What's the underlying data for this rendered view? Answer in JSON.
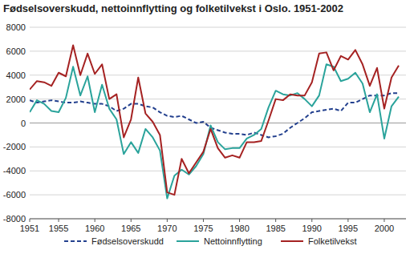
{
  "chart_data": {
    "type": "line",
    "title": "Fødselsoverskudd, nettoinnflytting og folketilvekst i Oslo. 1951-2002",
    "x": [
      1951,
      1952,
      1953,
      1954,
      1955,
      1956,
      1957,
      1958,
      1959,
      1960,
      1961,
      1962,
      1963,
      1964,
      1965,
      1966,
      1967,
      1968,
      1969,
      1970,
      1971,
      1972,
      1973,
      1974,
      1975,
      1976,
      1977,
      1978,
      1979,
      1980,
      1981,
      1982,
      1983,
      1984,
      1985,
      1986,
      1987,
      1988,
      1989,
      1990,
      1991,
      1992,
      1993,
      1994,
      1995,
      1996,
      1997,
      1998,
      1999,
      2000,
      2001,
      2002
    ],
    "series": [
      {
        "name": "Fødselsoverskudd",
        "color": "#23408e",
        "line_style": "dashed",
        "values": [
          1900,
          1700,
          1800,
          1900,
          1800,
          1700,
          1700,
          1800,
          1700,
          1600,
          1600,
          1400,
          1000,
          1200,
          1600,
          1600,
          1400,
          1300,
          900,
          600,
          500,
          600,
          300,
          0,
          100,
          -400,
          -600,
          -800,
          -900,
          -900,
          -1000,
          -800,
          -1000,
          -1200,
          -1100,
          -900,
          -400,
          0,
          400,
          900,
          1000,
          1100,
          1200,
          1000,
          1700,
          1700,
          2000,
          2300,
          2300,
          2300,
          2500,
          2500
        ]
      },
      {
        "name": "Nettoinnflytting",
        "color": "#2aa39b",
        "line_style": "solid",
        "values": [
          900,
          1900,
          1600,
          1000,
          900,
          2100,
          4700,
          2300,
          3900,
          900,
          3200,
          1200,
          300,
          -2600,
          -1600,
          -2500,
          -500,
          -1200,
          -2300,
          -6300,
          -4400,
          -3900,
          -4300,
          -3600,
          -2600,
          -200,
          -1600,
          -2200,
          -2100,
          -2100,
          -1300,
          -1000,
          -500,
          1300,
          2700,
          2400,
          2300,
          2500,
          2000,
          1400,
          2300,
          4900,
          4700,
          3500,
          3700,
          4200,
          3300,
          900,
          2400,
          -1300,
          1400,
          2200
        ]
      },
      {
        "name": "Folketilvekst",
        "color": "#a52222",
        "line_style": "solid",
        "values": [
          2800,
          3500,
          3400,
          3100,
          4200,
          3900,
          6500,
          4000,
          5800,
          4100,
          4900,
          2000,
          2400,
          -1200,
          300,
          3800,
          800,
          100,
          -1000,
          -5800,
          -6000,
          -3000,
          -4200,
          -3300,
          -2400,
          -500,
          -2100,
          -2900,
          -2700,
          -2900,
          -1600,
          -1600,
          -1500,
          200,
          2000,
          1900,
          2400,
          2300,
          2300,
          3400,
          5800,
          5900,
          4400,
          5600,
          5300,
          6100,
          4900,
          3100,
          4600,
          1200,
          3800,
          4800
        ]
      }
    ],
    "xlim": [
      1951,
      2003
    ],
    "xticks": [
      1951,
      1955,
      1960,
      1965,
      1970,
      1975,
      1980,
      1985,
      1990,
      1995,
      2000
    ],
    "ylim": [
      -8000,
      8000
    ],
    "yticks": [
      -8000,
      -6000,
      -4000,
      -2000,
      0,
      2000,
      4000,
      6000,
      8000
    ],
    "grid": true,
    "legend": "bottom"
  }
}
